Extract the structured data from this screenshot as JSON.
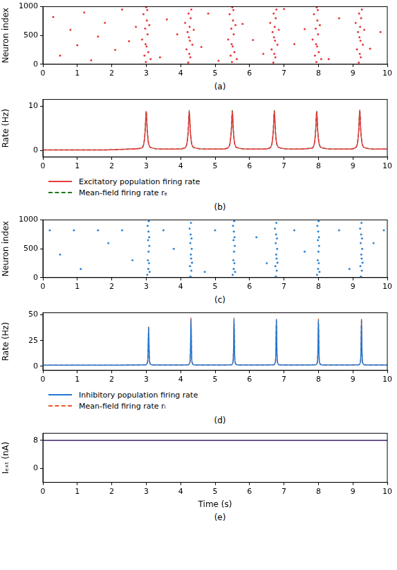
{
  "chart_data": [
    {
      "type": "scatter",
      "label": "(a)",
      "y_label": "Neuron index",
      "xlim": [
        0,
        10
      ],
      "xticks": [
        0,
        1,
        2,
        3,
        4,
        5,
        6,
        7,
        8,
        9,
        10
      ],
      "ylim": [
        0,
        1000
      ],
      "yticks": [
        0,
        500,
        1000
      ],
      "grid": false,
      "x": [
        0.3,
        0.5,
        0.8,
        1.0,
        1.2,
        1.4,
        1.6,
        1.8,
        2.1,
        2.3,
        2.5,
        2.7,
        3.4,
        3.6,
        3.9,
        4.6,
        4.8,
        5.1,
        5.8,
        6.1,
        6.4,
        7.0,
        7.3,
        7.6,
        8.3,
        8.6,
        9.5,
        9.8,
        2.88,
        2.92,
        2.95,
        2.97,
        2.98,
        2.99,
        3.0,
        3.01,
        3.02,
        3.03,
        3.04,
        3.06,
        3.09,
        3.13,
        4.13,
        4.17,
        4.2,
        4.22,
        4.23,
        4.24,
        4.25,
        4.26,
        4.27,
        4.28,
        4.29,
        4.31,
        4.34,
        4.38,
        5.38,
        5.42,
        5.45,
        5.47,
        5.48,
        5.49,
        5.5,
        5.51,
        5.52,
        5.53,
        5.54,
        5.56,
        5.59,
        5.63,
        6.6,
        6.64,
        6.67,
        6.69,
        6.7,
        6.71,
        6.72,
        6.73,
        6.74,
        6.75,
        6.76,
        6.78,
        6.81,
        6.85,
        7.83,
        7.87,
        7.9,
        7.92,
        7.93,
        7.94,
        7.95,
        7.96,
        7.97,
        7.98,
        7.99,
        8.01,
        8.04,
        8.08,
        9.08,
        9.12,
        9.15,
        9.17,
        9.18,
        9.19,
        9.2,
        9.21,
        9.22,
        9.23,
        9.24,
        9.26,
        9.29,
        9.33
      ],
      "series": [
        {
          "color": "#e8383d",
          "marker": "dot",
          "values": [
            820,
            150,
            600,
            330,
            900,
            70,
            480,
            720,
            250,
            950,
            400,
            650,
            120,
            780,
            520,
            300,
            880,
            60,
            700,
            420,
            180,
            960,
            350,
            610,
            90,
            800,
            270,
            560,
            430,
            870,
            150,
            620,
            350,
            40,
            990,
            310,
            760,
            940,
            520,
            210,
            680,
            90,
            720,
            260,
            560,
            30,
            880,
            470,
            180,
            650,
            410,
            120,
            800,
            950,
            340,
            600,
            430,
            870,
            150,
            620,
            350,
            40,
            990,
            310,
            760,
            940,
            520,
            210,
            680,
            90,
            720,
            260,
            560,
            30,
            880,
            470,
            180,
            650,
            410,
            120,
            800,
            950,
            340,
            600,
            430,
            870,
            150,
            620,
            350,
            40,
            990,
            310,
            760,
            940,
            520,
            210,
            680,
            90,
            720,
            260,
            560,
            30,
            880,
            470,
            180,
            650,
            410,
            120,
            800,
            950,
            340,
            600
          ]
        }
      ]
    },
    {
      "type": "line",
      "label": "(b)",
      "y_label": "Rate (Hz)",
      "legend": "bottom",
      "xlim": [
        0,
        10
      ],
      "xticks": [
        0,
        1,
        2,
        3,
        4,
        5,
        6,
        7,
        8,
        9,
        10
      ],
      "ylim": [
        -1.5,
        11.5
      ],
      "yticks": [
        0,
        10
      ],
      "grid": false,
      "x": [
        0,
        0.5,
        1,
        1.5,
        2,
        2.5,
        2.85,
        2.93,
        2.97,
        3.0,
        3.03,
        3.07,
        3.15,
        3.5,
        3.9,
        4.1,
        4.18,
        4.22,
        4.25,
        4.28,
        4.32,
        4.4,
        4.8,
        5.2,
        5.35,
        5.43,
        5.47,
        5.5,
        5.53,
        5.57,
        5.65,
        6.0,
        6.4,
        6.57,
        6.65,
        6.69,
        6.72,
        6.75,
        6.79,
        6.87,
        7.3,
        7.8,
        7.88,
        7.92,
        7.95,
        7.98,
        8.02,
        8.1,
        8.5,
        8.9,
        9.05,
        9.13,
        9.17,
        9.2,
        9.23,
        9.27,
        9.35,
        9.7,
        10
      ],
      "series": [
        {
          "name": "Excitatory population firing rate",
          "color": "#e8383d",
          "line_style": "solid",
          "values": [
            0.1,
            0.1,
            0.1,
            0.1,
            0.15,
            0.3,
            0.5,
            1.5,
            4.5,
            8.8,
            4.5,
            1.5,
            0.6,
            0.3,
            0.3,
            0.5,
            1.5,
            4.5,
            8.9,
            4.5,
            1.5,
            0.6,
            0.3,
            0.3,
            0.5,
            1.5,
            4.5,
            8.9,
            4.5,
            1.5,
            0.6,
            0.3,
            0.3,
            0.5,
            1.5,
            4.5,
            8.9,
            4.5,
            1.5,
            0.6,
            0.3,
            0.5,
            1.5,
            4.5,
            8.8,
            4.5,
            1.5,
            0.6,
            0.3,
            0.3,
            0.5,
            1.5,
            4.5,
            9.2,
            4.5,
            1.5,
            0.6,
            0.3,
            0.3
          ]
        },
        {
          "name": "Mean-field firing rate rₑ",
          "color": "#1a7a1a",
          "line_style": "dashed",
          "values": [
            0.1,
            0.1,
            0.1,
            0.1,
            0.15,
            0.3,
            0.5,
            1.5,
            4.5,
            8.9,
            4.5,
            1.5,
            0.6,
            0.3,
            0.3,
            0.5,
            1.5,
            4.5,
            9.0,
            4.5,
            1.5,
            0.6,
            0.3,
            0.3,
            0.5,
            1.5,
            4.5,
            9.0,
            4.5,
            1.5,
            0.6,
            0.3,
            0.3,
            0.5,
            1.5,
            4.5,
            9.0,
            4.5,
            1.5,
            0.6,
            0.3,
            0.5,
            1.5,
            4.5,
            8.9,
            4.5,
            1.5,
            0.6,
            0.3,
            0.3,
            0.5,
            1.5,
            4.5,
            9.1,
            4.5,
            1.5,
            0.6,
            0.3,
            0.3
          ]
        }
      ]
    },
    {
      "type": "scatter",
      "label": "(c)",
      "y_label": "Neuron index",
      "xlim": [
        0,
        10
      ],
      "xticks": [
        0,
        1,
        2,
        3,
        4,
        5,
        6,
        7,
        8,
        9,
        10
      ],
      "ylim": [
        0,
        1000
      ],
      "yticks": [
        0,
        500,
        1000
      ],
      "grid": false,
      "x": [
        0.2,
        0.5,
        0.9,
        1.1,
        1.6,
        1.9,
        2.3,
        2.6,
        3.5,
        3.8,
        4.7,
        5.0,
        6.2,
        6.5,
        7.3,
        7.6,
        8.6,
        8.9,
        9.6,
        9.9,
        3.03,
        3.04,
        3.05,
        3.055,
        3.06,
        3.065,
        3.07,
        3.075,
        3.08,
        3.085,
        3.09,
        3.1,
        4.26,
        4.27,
        4.28,
        4.285,
        4.29,
        4.295,
        4.3,
        4.305,
        4.31,
        4.315,
        4.32,
        4.33,
        5.51,
        5.52,
        5.53,
        5.535,
        5.54,
        5.545,
        5.55,
        5.555,
        5.56,
        5.565,
        5.57,
        5.58,
        6.74,
        6.75,
        6.76,
        6.765,
        6.77,
        6.775,
        6.78,
        6.785,
        6.79,
        6.795,
        6.8,
        6.81,
        7.96,
        7.97,
        7.98,
        7.985,
        7.99,
        7.995,
        8.0,
        8.005,
        8.01,
        8.015,
        8.02,
        8.03,
        9.21,
        9.22,
        9.23,
        9.235,
        9.24,
        9.245,
        9.25,
        9.255,
        9.26,
        9.265,
        9.27,
        9.28
      ],
      "series": [
        {
          "color": "#2f86d6",
          "marker": "dot",
          "values": [
            820,
            400,
            820,
            150,
            820,
            600,
            820,
            300,
            820,
            500,
            100,
            820,
            700,
            250,
            820,
            450,
            820,
            150,
            600,
            820,
            50,
            900,
            300,
            650,
            150,
            800,
            450,
            980,
            250,
            700,
            550,
            100,
            850,
            200,
            600,
            20,
            750,
            400,
            950,
            330,
            120,
            680,
            500,
            260,
            50,
            900,
            300,
            650,
            150,
            800,
            450,
            980,
            250,
            700,
            550,
            100,
            850,
            200,
            600,
            20,
            750,
            400,
            950,
            330,
            120,
            680,
            500,
            260,
            50,
            900,
            300,
            650,
            150,
            800,
            450,
            980,
            250,
            700,
            550,
            100,
            850,
            200,
            600,
            20,
            750,
            400,
            950,
            330,
            120,
            680,
            500,
            260
          ]
        }
      ]
    },
    {
      "type": "line",
      "label": "(d)",
      "y_label": "Rate (Hz)",
      "legend": "bottom",
      "xlim": [
        0,
        10
      ],
      "xticks": [
        0,
        1,
        2,
        3,
        4,
        5,
        6,
        7,
        8,
        9,
        10
      ],
      "ylim": [
        -4,
        52
      ],
      "yticks": [
        0,
        25,
        50
      ],
      "grid": false,
      "x": [
        0,
        0.5,
        1,
        1.5,
        2,
        2.5,
        2.99,
        3.04,
        3.055,
        3.07,
        3.085,
        3.1,
        3.15,
        3.6,
        4.0,
        4.22,
        4.27,
        4.285,
        4.3,
        4.315,
        4.33,
        4.38,
        4.8,
        5.2,
        5.47,
        5.52,
        5.535,
        5.55,
        5.565,
        5.58,
        5.63,
        6.0,
        6.4,
        6.7,
        6.75,
        6.765,
        6.78,
        6.795,
        6.81,
        6.86,
        7.3,
        7.6,
        7.92,
        7.97,
        7.985,
        8.0,
        8.015,
        8.03,
        8.08,
        8.5,
        8.9,
        9.17,
        9.22,
        9.235,
        9.25,
        9.265,
        9.28,
        9.33,
        9.7,
        10
      ],
      "series": [
        {
          "name": "Inhibitory population firing rate",
          "color": "#1f77d4",
          "line_style": "solid",
          "values": [
            1.0,
            1.0,
            1.0,
            1.0,
            1.0,
            1.2,
            1.5,
            4,
            15,
            38,
            15,
            4,
            1.5,
            1.2,
            1.2,
            1.5,
            4,
            15,
            46,
            15,
            4,
            1.5,
            1.2,
            1.2,
            1.5,
            4,
            15,
            46,
            15,
            4,
            1.5,
            1.2,
            1.2,
            1.5,
            4,
            15,
            46,
            15,
            4,
            1.5,
            1.2,
            1.2,
            1.5,
            4,
            15,
            45,
            15,
            4,
            1.5,
            1.2,
            1.2,
            1.5,
            4,
            15,
            46,
            15,
            4,
            1.5,
            1.2,
            1.2
          ]
        },
        {
          "name": "Mean-field firing rate rᵢ",
          "color": "#e8552a",
          "line_style": "dashed",
          "values": [
            1.0,
            1.0,
            1.0,
            1.0,
            1.0,
            1.2,
            1.5,
            4,
            15,
            39,
            15,
            4,
            1.5,
            1.2,
            1.2,
            1.5,
            4,
            15,
            47,
            15,
            4,
            1.5,
            1.2,
            1.2,
            1.5,
            4,
            15,
            47,
            15,
            4,
            1.5,
            1.2,
            1.2,
            1.5,
            4,
            15,
            46,
            15,
            4,
            1.5,
            1.2,
            1.2,
            1.5,
            4,
            15,
            46,
            15,
            4,
            1.5,
            1.2,
            1.2,
            1.5,
            4,
            15,
            46,
            15,
            4,
            1.5,
            1.2,
            1.2
          ]
        }
      ]
    },
    {
      "type": "step",
      "label": "(e)",
      "y_label": "Iₑₓₜ (nA)",
      "x_label": "Time (s)",
      "xlim": [
        0,
        10
      ],
      "xticks": [
        0,
        1,
        2,
        3,
        4,
        5,
        6,
        7,
        8,
        9,
        10
      ],
      "ylim": [
        -4,
        10
      ],
      "yticks": [
        0,
        8
      ],
      "grid": false,
      "x": [
        0,
        2,
        10
      ],
      "series": [
        {
          "color": "#3b1f6b",
          "line_style": "solid",
          "values": [
            0,
            8,
            8
          ]
        }
      ]
    }
  ]
}
